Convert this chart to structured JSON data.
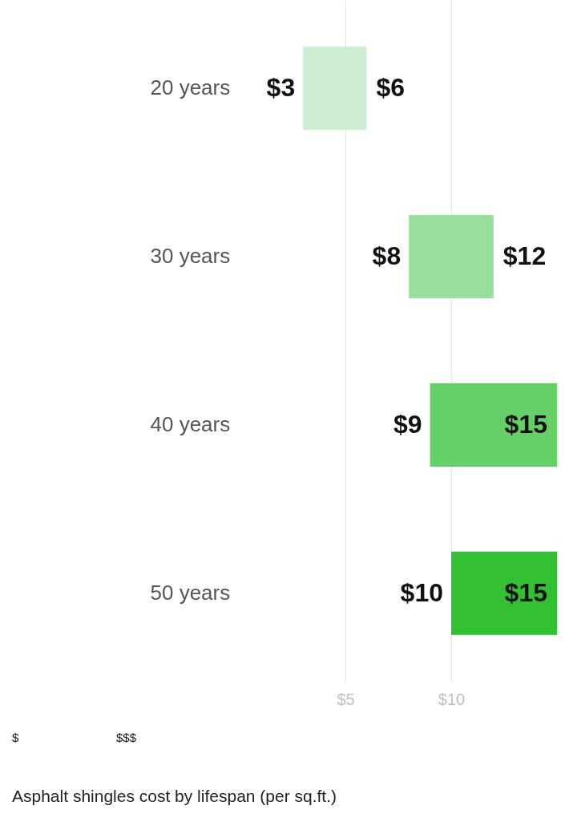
{
  "chart_data": {
    "type": "bar",
    "orientation": "horizontal",
    "title": "Asphalt shingles cost by lifespan (per sq.ft.)",
    "categories": [
      "20 years",
      "30 years",
      "40 years",
      "50 years"
    ],
    "base": [
      3,
      8,
      9,
      10
    ],
    "values": [
      3,
      4,
      6,
      5
    ],
    "colors": [
      "#cdeed0",
      "#9ade9b",
      "#66cf67",
      "#33c033"
    ],
    "xlim": [
      0,
      15
    ],
    "xticks": [
      {
        "value": 5,
        "label": "$5"
      },
      {
        "value": 10,
        "label": "$10"
      }
    ],
    "grid": "x",
    "annotations": [
      {
        "text": "$3",
        "x": 3,
        "y": "20 years"
      },
      {
        "text": "$6",
        "x": 6,
        "y": "20 years"
      },
      {
        "text": "$8",
        "x": 8,
        "y": "30 years"
      },
      {
        "text": "$12",
        "x": 12,
        "y": "30 years"
      },
      {
        "text": "$9",
        "x": 9,
        "y": "40 years"
      },
      {
        "text": "$15",
        "x": 15,
        "y": "40 years"
      },
      {
        "text": "$10",
        "x": 10,
        "y": "50 years"
      },
      {
        "text": "$15",
        "x": 15,
        "y": "50 years"
      },
      "$",
      "$$$"
    ]
  }
}
